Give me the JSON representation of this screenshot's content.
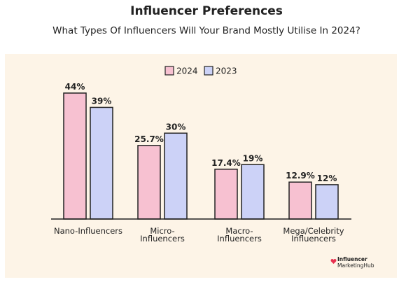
{
  "header": {
    "title": "Influencer Preferences",
    "subtitle": "What Types Of Influencers Will Your Brand Mostly Utilise In 2024?"
  },
  "brand": {
    "line1": "Influencer",
    "line2": "MarketingHub",
    "icon": "heart-logo-icon"
  },
  "colors": {
    "panel_bg": "#fdf4e7",
    "series_2024": "#f7c1d1",
    "series_2023": "#ccd2f7",
    "outline": "#222222",
    "brand_accent": "#e8304f"
  },
  "chart_data": {
    "type": "bar",
    "title": "Influencer Preferences",
    "subtitle": "What Types Of Influencers Will Your Brand Mostly Utilise In 2024?",
    "categories": [
      [
        "Nano-Influencers"
      ],
      [
        "Micro-",
        "Influencers"
      ],
      [
        "Macro-",
        "Influencers"
      ],
      [
        "Mega/Celebrity",
        "Influencers"
      ]
    ],
    "series": [
      {
        "name": "2024",
        "values": [
          44,
          25.7,
          17.4,
          12.9
        ],
        "labels": [
          "44%",
          "25.7%",
          "17.4%",
          "12.9%"
        ],
        "color": "#f7c1d1"
      },
      {
        "name": "2023",
        "values": [
          39,
          30,
          19,
          12
        ],
        "labels": [
          "39%",
          "30%",
          "19%",
          "12%"
        ],
        "color": "#ccd2f7"
      }
    ],
    "ylim": [
      0,
      44
    ],
    "grid": false,
    "legend_position": "top-center"
  }
}
